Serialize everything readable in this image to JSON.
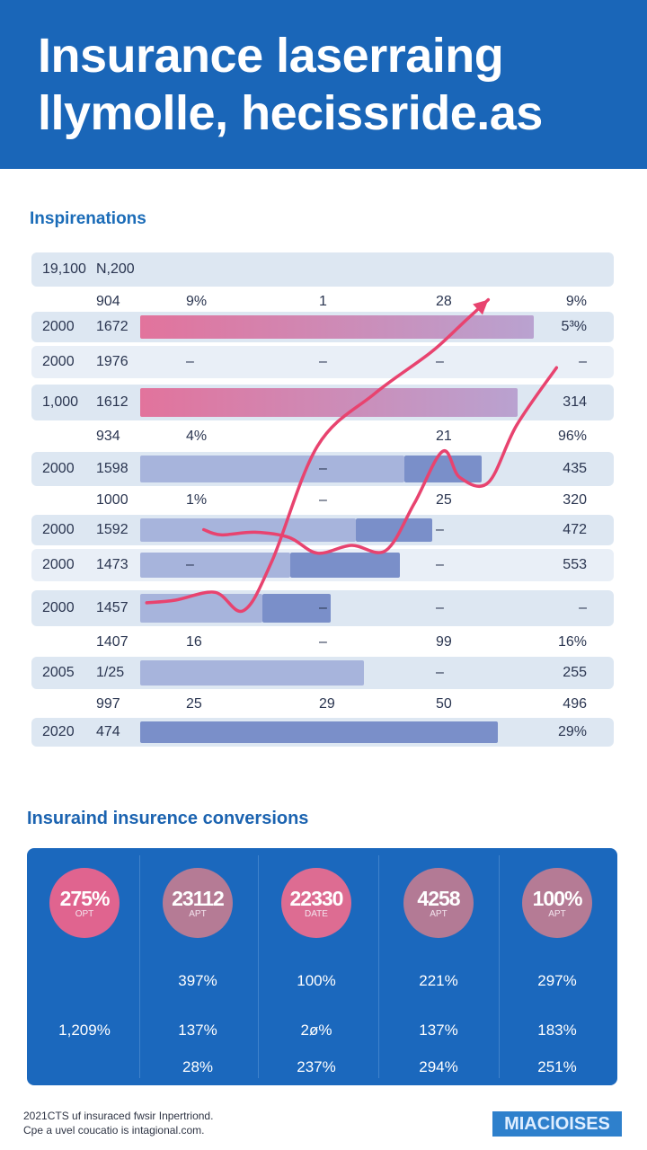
{
  "header": {
    "title_line1": "Insurance laserraing",
    "title_line2": "llymolle, hecissride.as"
  },
  "sections": {
    "table_title": "Inspirenations",
    "conversions_title": "Insuraind insurence conversions"
  },
  "chart_data": {
    "type": "table",
    "rows": [
      {
        "cells": [
          "19,100",
          "N,200",
          "",
          "",
          "",
          ""
        ],
        "bars": []
      },
      {
        "cells": [
          "",
          "904",
          "9%",
          "1",
          "28",
          "9%"
        ],
        "bars": []
      },
      {
        "cells": [
          "2000",
          "1672",
          "",
          "",
          "",
          "5³%"
        ],
        "bars": [
          {
            "from": 0,
            "to": 0.97,
            "tone": "pink"
          }
        ]
      },
      {
        "cells": [
          "2000",
          "1976",
          "–",
          "–",
          "–",
          "–"
        ],
        "bars": []
      },
      {
        "cells": [
          "1,000",
          "1612",
          "",
          "",
          "",
          "314"
        ],
        "bars": [
          {
            "from": 0,
            "to": 0.93,
            "tone": "pink"
          }
        ]
      },
      {
        "cells": [
          "",
          "934",
          "4%",
          "",
          "21",
          "96%"
        ],
        "bars": []
      },
      {
        "cells": [
          "2000",
          "1598",
          "",
          "–",
          "",
          "435"
        ],
        "bars": [
          {
            "from": 0,
            "to": 0.65,
            "tone": "lav"
          },
          {
            "from": 0.65,
            "to": 0.84,
            "tone": "blue"
          }
        ]
      },
      {
        "cells": [
          "",
          "1000",
          "1%",
          "–",
          "25",
          "320"
        ],
        "bars": []
      },
      {
        "cells": [
          "2000",
          "1592",
          "",
          "",
          "–",
          "472"
        ],
        "bars": [
          {
            "from": 0,
            "to": 0.53,
            "tone": "lav"
          },
          {
            "from": 0.53,
            "to": 0.72,
            "tone": "blue"
          }
        ]
      },
      {
        "cells": [
          "2000",
          "1473",
          "–",
          "",
          "–",
          "553"
        ],
        "bars": [
          {
            "from": 0,
            "to": 0.37,
            "tone": "lav"
          },
          {
            "from": 0.37,
            "to": 0.64,
            "tone": "blue"
          }
        ]
      },
      {
        "cells": [
          "2000",
          "1457",
          "",
          "–",
          "–",
          "–"
        ],
        "bars": [
          {
            "from": 0,
            "to": 0.3,
            "tone": "lav"
          },
          {
            "from": 0.3,
            "to": 0.47,
            "tone": "blue"
          }
        ]
      },
      {
        "cells": [
          "",
          "1407",
          "16",
          "–",
          "99",
          "16%"
        ],
        "bars": []
      },
      {
        "cells": [
          "2005",
          "1/25",
          "",
          "",
          "–",
          "255"
        ],
        "bars": [
          {
            "from": 0,
            "to": 0.55,
            "tone": "lav"
          }
        ]
      },
      {
        "cells": [
          "",
          "997",
          "25",
          "29",
          "50",
          "496"
        ],
        "bars": []
      },
      {
        "cells": [
          "2020",
          "474",
          "",
          "",
          "",
          "29%"
        ],
        "bars": [
          {
            "from": 0,
            "to": 0.88,
            "tone": "blue"
          }
        ]
      }
    ],
    "lines": [
      {
        "name": "upper trend",
        "color": "#e8436f",
        "points": [
          [
            1.0,
            1.0
          ],
          [
            1.5,
            1.1
          ],
          [
            2.2,
            1.4
          ],
          [
            2.7,
            0.7
          ],
          [
            3.2,
            2.6
          ],
          [
            4.0,
            7.0
          ],
          [
            5.0,
            9.0
          ],
          [
            6.0,
            10.6
          ],
          [
            6.6,
            11.8
          ],
          [
            7.0,
            12.6
          ]
        ]
      },
      {
        "name": "lower trend",
        "color": "#e8436f",
        "points": [
          [
            2.0,
            3.8
          ],
          [
            2.3,
            3.6
          ],
          [
            2.9,
            3.7
          ],
          [
            3.5,
            3.5
          ],
          [
            4.0,
            2.9
          ],
          [
            4.6,
            3.2
          ],
          [
            5.2,
            3.0
          ],
          [
            5.7,
            4.8
          ],
          [
            6.2,
            6.8
          ],
          [
            6.5,
            5.8
          ],
          [
            7.0,
            5.6
          ],
          [
            7.5,
            7.8
          ],
          [
            8.2,
            10.0
          ]
        ]
      }
    ],
    "xlim": [
      0,
      9
    ],
    "ylim": [
      0,
      13
    ]
  },
  "conversions": {
    "stats": [
      {
        "value": "275%",
        "sub": "OPT",
        "color": "#e0648f"
      },
      {
        "value": "23112",
        "sub": "APT",
        "color": "#b57b95"
      },
      {
        "value": "22330",
        "sub": "DATE",
        "color": "#dd6c92"
      },
      {
        "value": "4258",
        "sub": "APT",
        "color": "#b37a95"
      },
      {
        "value": "100%",
        "sub": "APT",
        "color": "#b57b95"
      }
    ],
    "values": [
      [
        "",
        "397%",
        "100%",
        "221%",
        "297%"
      ],
      [
        "1,209%",
        "137%",
        "2ø%",
        "137%",
        "183%"
      ],
      [
        "",
        "28%",
        "237%",
        "294%",
        "251%"
      ]
    ]
  },
  "footer": {
    "line1": "2021CTS uf insuraced fwsir Inpertriond.",
    "line2": "Cpe a uvel coucatio is intagional.com.",
    "badge": "MIAClOISES"
  },
  "colors": {
    "brand": "#1a66b8",
    "pink": "#e2739c",
    "lav": "#a7b4dc",
    "blue": "#7a8fc9",
    "line": "#e8436f"
  }
}
